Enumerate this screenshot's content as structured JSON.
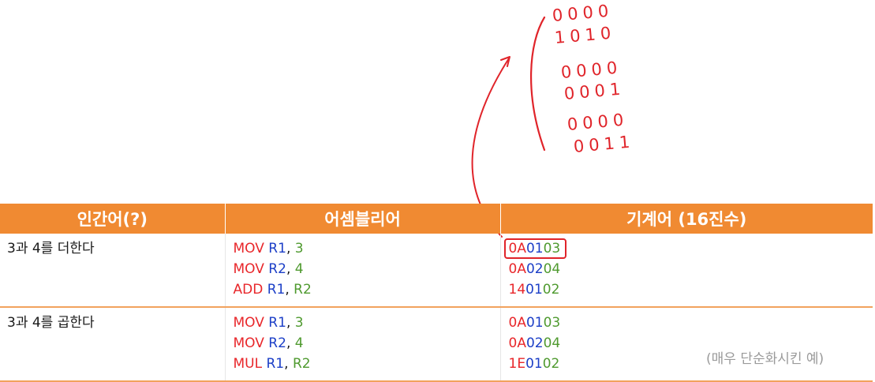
{
  "headers": {
    "human": "인간어(?)",
    "assembly": "어셈블리어",
    "machine": "기계어 (16진수)"
  },
  "rows": [
    {
      "human": "3과 4를 더한다",
      "asm": [
        {
          "op": "MOV",
          "reg": "R1",
          "sep": ", ",
          "arg": "3"
        },
        {
          "op": "MOV",
          "reg": "R2",
          "sep": ", ",
          "arg": "4"
        },
        {
          "op": "ADD",
          "reg": "R1",
          "sep": ", ",
          "arg": "R2"
        }
      ],
      "machine": [
        {
          "a": "0A",
          "b": "01",
          "c": "03"
        },
        {
          "a": "0A",
          "b": "02",
          "c": "04"
        },
        {
          "a": "14",
          "b": "01",
          "c": "02"
        }
      ]
    },
    {
      "human": "3과 4를 곱한다",
      "asm": [
        {
          "op": "MOV",
          "reg": "R1",
          "sep": ", ",
          "arg": "3"
        },
        {
          "op": "MOV",
          "reg": "R2",
          "sep": ", ",
          "arg": "4"
        },
        {
          "op": "MUL",
          "reg": "R1",
          "sep": ", ",
          "arg": "R2"
        }
      ],
      "machine": [
        {
          "a": "0A",
          "b": "01",
          "c": "03"
        },
        {
          "a": "0A",
          "b": "02",
          "c": "04"
        },
        {
          "a": "1E",
          "b": "01",
          "c": "02"
        }
      ]
    }
  ],
  "handwritten_bits": [
    "0000",
    "1010",
    "0000",
    "0001",
    "0000",
    "0011"
  ],
  "note": "(매우 단순화시킨 예)",
  "colors": {
    "header_bg": "#f08a32",
    "opcode": "#e8262a",
    "register": "#1c3fc7",
    "immediate": "#4f9a2f",
    "ink": "#e0242a",
    "note": "#9a9a9a"
  }
}
